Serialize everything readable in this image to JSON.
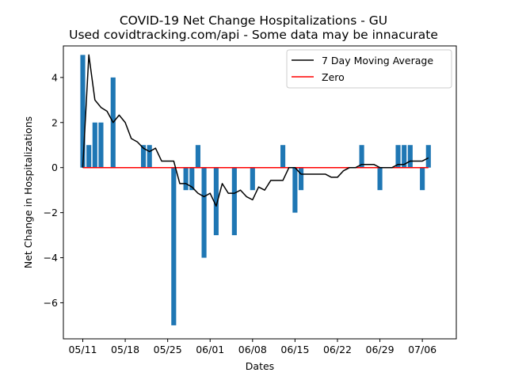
{
  "chart_data": {
    "type": "bar",
    "title": "COVID-19 Net Change Hospitalizations - GU",
    "subtitle": "Used covidtracking.com/api - Some data may be innacurate",
    "xlabel": "Dates",
    "ylabel": "Net Change in Hospitalizations",
    "x_start": "05/11",
    "x_ticks": [
      "05/11",
      "05/18",
      "05/25",
      "06/01",
      "06/08",
      "06/15",
      "06/22",
      "06/29",
      "07/06"
    ],
    "ylim": [
      -7.6,
      5.4
    ],
    "xlim": [
      -3.2,
      61.6
    ],
    "y_ticks": [
      -6,
      -4,
      -2,
      0,
      2,
      4
    ],
    "bar_days": [
      0,
      1,
      2,
      3,
      4,
      5,
      6,
      7,
      8,
      9,
      10,
      11,
      12,
      13,
      14,
      15,
      16,
      17,
      18,
      19,
      20,
      21,
      22,
      23,
      24,
      25,
      26,
      27,
      28,
      29,
      30,
      31,
      32,
      33,
      34,
      35,
      36,
      37,
      38,
      39,
      40,
      41,
      42,
      43,
      44,
      45,
      46,
      47,
      48,
      49,
      50,
      51,
      52,
      53,
      54,
      55,
      56,
      57
    ],
    "bar_values": [
      5,
      1,
      2,
      2,
      0,
      4,
      0,
      0,
      0,
      0,
      1,
      1,
      0,
      0,
      0,
      -7,
      0,
      -1,
      -1,
      1,
      -4,
      0,
      -3,
      0,
      0,
      -3,
      0,
      0,
      -1,
      0,
      0,
      0,
      0,
      1,
      0,
      -2,
      -1,
      0,
      0,
      0,
      0,
      0,
      0,
      0,
      0,
      0,
      1,
      0,
      0,
      -1,
      0,
      0,
      1,
      1,
      1,
      0,
      -1,
      1
    ],
    "series": [
      {
        "name": "7 Day Moving Average",
        "color": "#000000",
        "values": [
          0,
          5,
          3,
          2.67,
          2.5,
          2,
          2.33,
          2,
          1.29,
          1.14,
          0.86,
          0.71,
          0.86,
          0.29,
          0.29,
          0.29,
          -0.71,
          -0.71,
          -0.86,
          -1.14,
          -1.29,
          -1.14,
          -1.71,
          -0.71,
          -1.14,
          -1.14,
          -1,
          -1.29,
          -1.43,
          -0.86,
          -1,
          -0.57,
          -0.57,
          -0.57,
          0,
          0,
          -0.29,
          -0.29,
          -0.29,
          -0.29,
          -0.29,
          -0.43,
          -0.43,
          -0.14,
          0,
          0,
          0.14,
          0.14,
          0.14,
          0,
          0,
          0,
          0.14,
          0.14,
          0.29,
          0.29,
          0.29,
          0.43
        ]
      },
      {
        "name": "Zero",
        "color": "#ff0000",
        "values": [
          0,
          0
        ]
      }
    ],
    "bar_color": "#1f77b4",
    "legend_position": "top-right",
    "grid": false
  }
}
